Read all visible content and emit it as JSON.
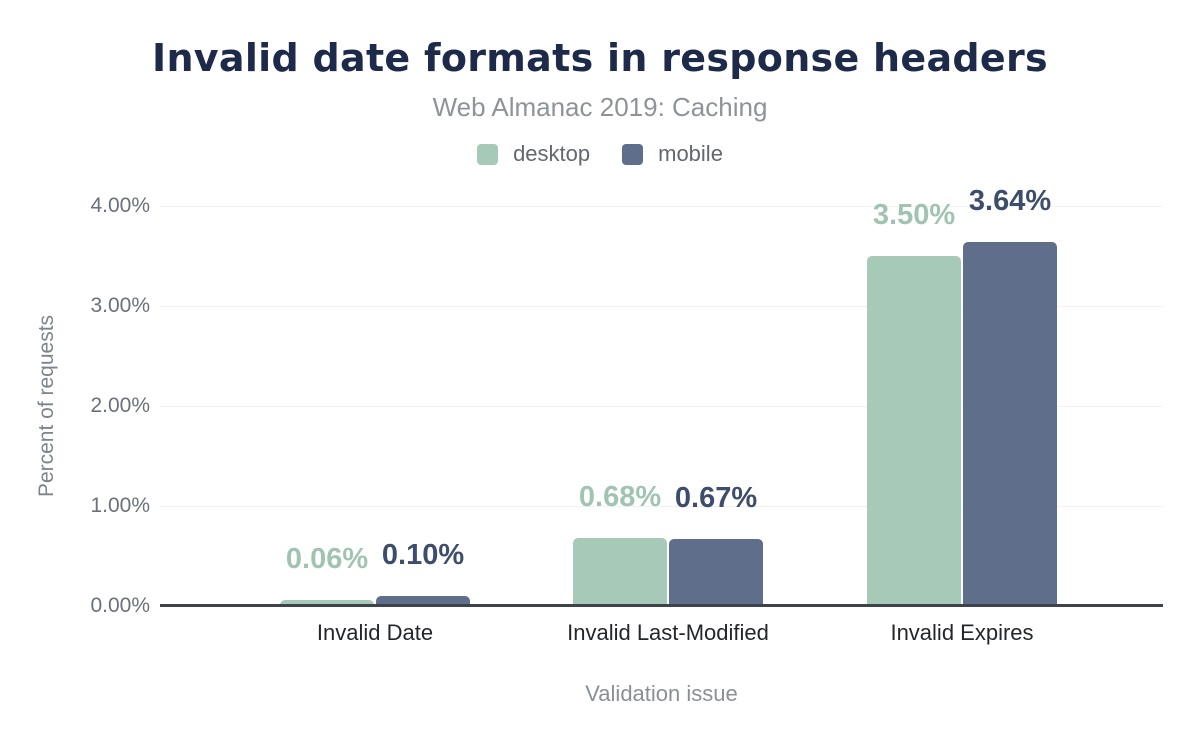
{
  "chart_data": {
    "type": "bar",
    "title": "Invalid date formats in response headers",
    "subtitle": "Web Almanac 2019: Caching",
    "xlabel": "Validation issue",
    "ylabel": "Percent of requests",
    "categories": [
      "Invalid Date",
      "Invalid Last-Modified",
      "Invalid Expires"
    ],
    "series": [
      {
        "name": "desktop",
        "color": "#a7c9b8",
        "label_color": "#a0c4b1",
        "values": [
          0.06,
          0.68,
          3.5
        ],
        "value_labels": [
          "0.06%",
          "0.68%",
          "3.50%"
        ]
      },
      {
        "name": "mobile",
        "color": "#5f6e8b",
        "label_color": "#3e4d6b",
        "values": [
          0.1,
          0.67,
          3.64
        ],
        "value_labels": [
          "0.10%",
          "0.67%",
          "3.64%"
        ]
      }
    ],
    "y_axis": {
      "ticks": [
        "4.00%",
        "3.00%",
        "2.00%",
        "1.00%",
        "0.00%"
      ],
      "tick_values": [
        4,
        3,
        2,
        1,
        0
      ],
      "ylim": [
        0,
        4
      ],
      "format": "percent"
    },
    "grid": "horizontal",
    "legend_position": "top",
    "style": {
      "title_color": "#1e2a49",
      "subtitle_color": "#8e9398",
      "axis_line_color": "#3d434b",
      "gridline_color": "#f2f2f2",
      "background": "#ffffff"
    }
  }
}
